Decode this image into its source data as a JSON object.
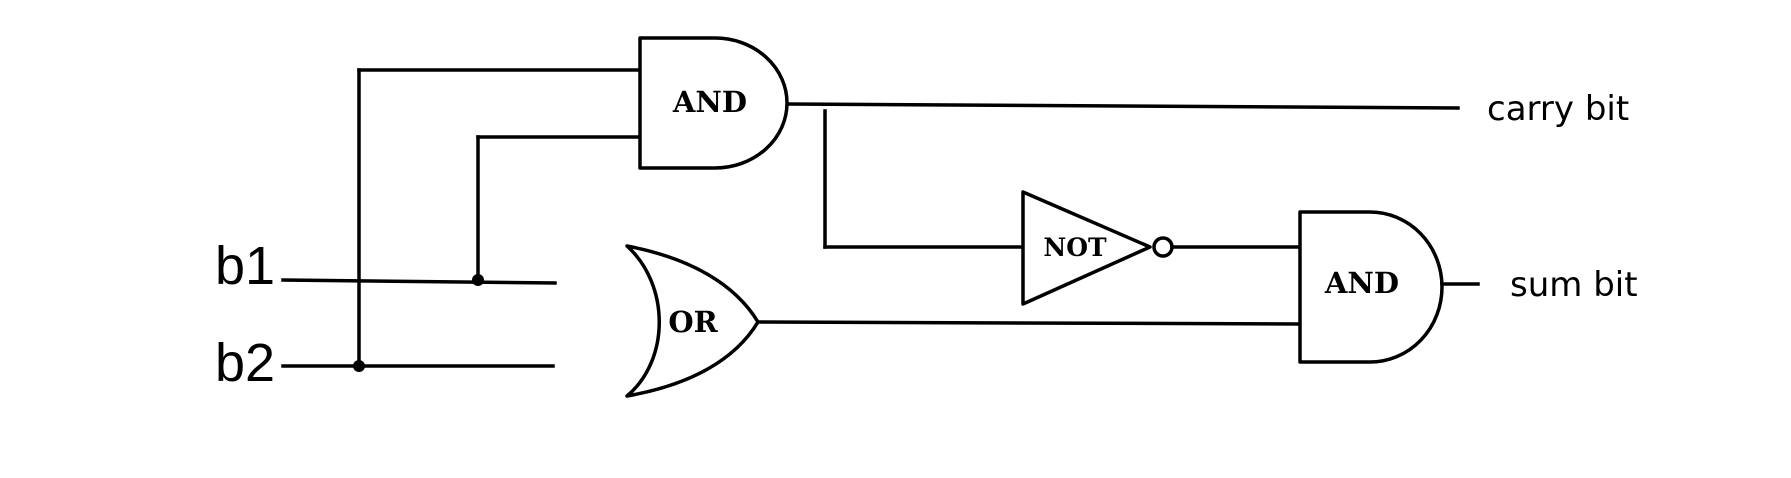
{
  "diagram": {
    "inputs": {
      "b1": "b1",
      "b2": "b2"
    },
    "gates": {
      "and_top": "AND",
      "or": "OR",
      "not": "NOT",
      "and_right": "AND"
    },
    "outputs": {
      "carry": "carry bit",
      "sum": "sum bit"
    }
  }
}
